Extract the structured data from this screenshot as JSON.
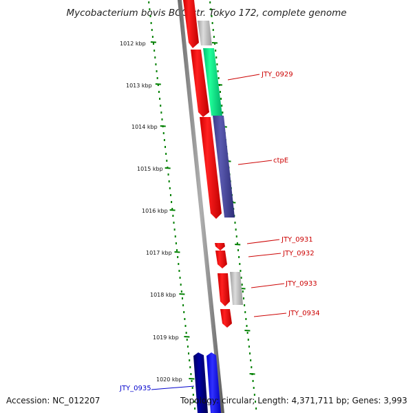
{
  "title": "Mycobacterium bovis BCG str. Tokyo 172, complete genome",
  "accession": "Accession: NC_012207",
  "topology": "Topology: circular; Length: 4,371,711 bp; Genes: 3,993",
  "tick_labels": [
    "1012 kbp",
    "1013 kbp",
    "1014 kbp",
    "1015 kbp",
    "1016 kbp",
    "1017 kbp",
    "1018 kbp",
    "1019 kbp",
    "1020 kbp"
  ],
  "gene_labels": [
    "JTY_0929",
    "ctpE",
    "JTY_0931",
    "JTY_0932",
    "JTY_0933",
    "JTY_0934",
    "JTY_0935"
  ],
  "colors": {
    "cds": "#ff0000",
    "gene_0929": "#00ee88",
    "gene_ctpE": "#4a4aa0",
    "grey_feature": "#b8b8b8",
    "gene_0935_dark": "#000080",
    "gene_0935_light": "#0000ff",
    "label_red": "#cc0000",
    "label_blue": "#0000cc",
    "backbone": "#808080",
    "dotted_ring": "#008000"
  }
}
